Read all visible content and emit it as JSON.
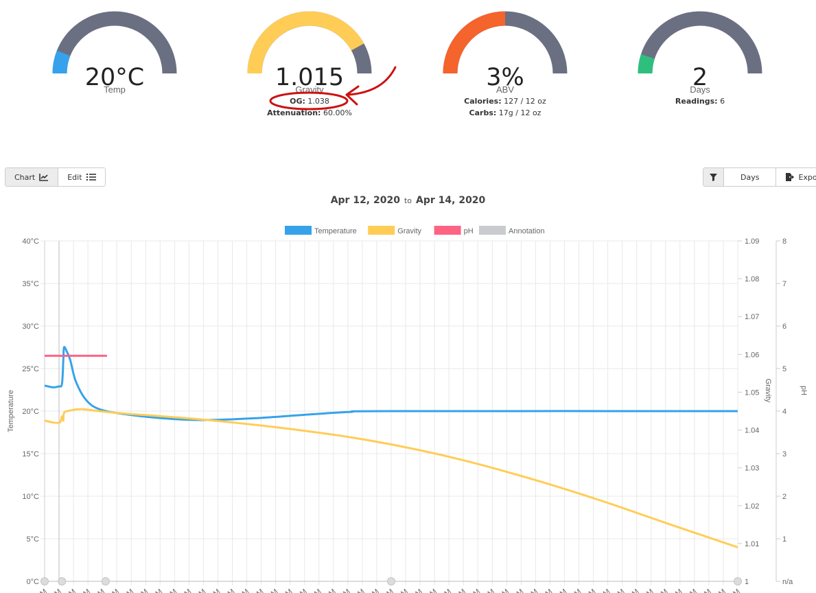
{
  "gauges": [
    {
      "value": "20°C",
      "label": "Temp",
      "fill_fraction": 0.12,
      "color": "#36a2eb",
      "track": "#6b6f82"
    },
    {
      "value": "1.015",
      "label": "Gravity",
      "fill_fraction": 0.84,
      "color": "#ffcd56",
      "track": "#6b6f82",
      "sub1_key": "OG:",
      "sub1_value": "1.038",
      "sub2_key": "Attenuation:",
      "sub2_value": "60.00%"
    },
    {
      "value": "3%",
      "label": "ABV",
      "fill_fraction": 0.5,
      "color": "#f4642c",
      "track": "#6b6f82",
      "sub1_key": "Calories:",
      "sub1_value": "127 / 12 oz",
      "sub2_key": "Carbs:",
      "sub2_value": "17g / 12 oz"
    },
    {
      "value": "2",
      "label": "Days",
      "fill_fraction": 0.1,
      "color": "#2ebf7e",
      "track": "#6b6f82",
      "sub1_key": "Readings:",
      "sub1_value": "6"
    }
  ],
  "toolbar": {
    "chart_label": "Chart",
    "edit_label": "Edit",
    "days_label": "Days",
    "export_label": "Export"
  },
  "date_range": {
    "start": "Apr 12, 2020",
    "to": "to",
    "end": "Apr 14, 2020"
  },
  "annotation_color": "#cc1111",
  "chart_data": {
    "type": "line",
    "legend": [
      {
        "name": "Temperature",
        "color": "#36a2eb"
      },
      {
        "name": "Gravity",
        "color": "#ffcd56"
      },
      {
        "name": "pH",
        "color": "#ff6384"
      },
      {
        "name": "Annotation",
        "color": "#c9cbcf"
      }
    ],
    "legend_position": "top",
    "grid": true,
    "y_left": {
      "label": "Temperature",
      "ticks": [
        "40°C",
        "35°C",
        "30°C",
        "25°C",
        "20°C",
        "15°C",
        "10°C",
        "5°C",
        "0°C"
      ],
      "range": [
        0,
        40
      ]
    },
    "y_gravity": {
      "label": "Gravity",
      "ticks": [
        "1.09",
        "1.08",
        "1.07",
        "1.06",
        "1.05",
        "1.04",
        "1.03",
        "1.02",
        "1.01",
        "1"
      ],
      "range": [
        1.0,
        1.09
      ]
    },
    "y_ph": {
      "label": "pH",
      "ticks": [
        "8",
        "7",
        "6",
        "5",
        "4",
        "3",
        "2",
        "1",
        "n/a"
      ],
      "range": [
        0,
        8
      ]
    },
    "x_tick_label": "M",
    "x_tick_count": 49,
    "x_range": [
      0,
      1
    ],
    "series": [
      {
        "name": "Temperature",
        "color": "#36a2eb",
        "points": [
          [
            0,
            23
          ],
          [
            0.012,
            22.8
          ],
          [
            0.02,
            22.9
          ],
          [
            0.025,
            23.2
          ],
          [
            0.027,
            26
          ],
          [
            0.028,
            27.5
          ],
          [
            0.032,
            27
          ],
          [
            0.037,
            26
          ],
          [
            0.045,
            23.5
          ],
          [
            0.06,
            21.3
          ],
          [
            0.08,
            20.2
          ],
          [
            0.12,
            19.6
          ],
          [
            0.18,
            19.1
          ],
          [
            0.23,
            18.95
          ],
          [
            0.3,
            19.15
          ],
          [
            0.38,
            19.6
          ],
          [
            0.44,
            19.9
          ],
          [
            0.5,
            20
          ],
          [
            1,
            20
          ]
        ]
      },
      {
        "name": "Gravity",
        "color": "#ffcd56",
        "points": [
          [
            0,
            1.0425
          ],
          [
            0.012,
            1.042
          ],
          [
            0.022,
            1.042
          ],
          [
            0.025,
            1.0436
          ],
          [
            0.027,
            1.0425
          ],
          [
            0.028,
            1.0445
          ],
          [
            0.035,
            1.0451
          ],
          [
            0.055,
            1.0455
          ],
          [
            0.1,
            1.0446
          ],
          [
            0.25,
            1.0424
          ],
          [
            0.4,
            1.0392
          ],
          [
            0.5,
            1.0362
          ],
          [
            0.6,
            1.0322
          ],
          [
            0.7,
            1.0272
          ],
          [
            0.8,
            1.0215
          ],
          [
            0.9,
            1.0152
          ],
          [
            1,
            1.009
          ]
        ]
      },
      {
        "name": "pH",
        "color": "#ff6384",
        "points": [
          [
            0,
            5.3
          ],
          [
            0.09,
            5.3
          ]
        ]
      }
    ],
    "markers_x": [
      0,
      0.025,
      0.088,
      0.5,
      1
    ]
  }
}
